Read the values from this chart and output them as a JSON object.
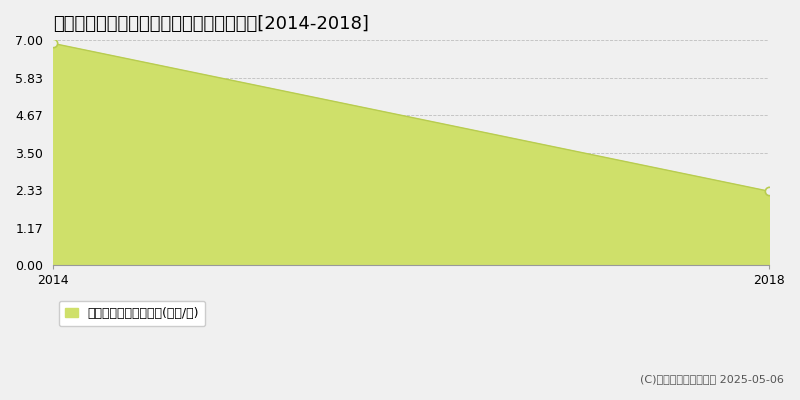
{
  "title": "会津若松市北会津町今和泉　住宅価格推移[2014-2018]",
  "x_values": [
    2014,
    2018
  ],
  "y_values": [
    6.9,
    2.3
  ],
  "ylim": [
    0,
    7
  ],
  "xlim": [
    2014,
    2018
  ],
  "yticks": [
    0,
    1.17,
    2.33,
    3.5,
    4.67,
    5.83,
    7
  ],
  "xticks": [
    2014,
    2018
  ],
  "fill_color": "#cfe06a",
  "fill_alpha": 1.0,
  "line_color": "#b8cc50",
  "marker_color": "#b8cc50",
  "grid_color": "#aaaaaa",
  "background_color": "#f0f0f0",
  "plot_background_color": "#f0f0f0",
  "legend_label": "住宅価格　平均坪単価(万円/坪)",
  "copyright_text": "(C)土地価格ドットコム 2025-05-06",
  "title_fontsize": 13,
  "tick_fontsize": 9,
  "legend_fontsize": 9
}
